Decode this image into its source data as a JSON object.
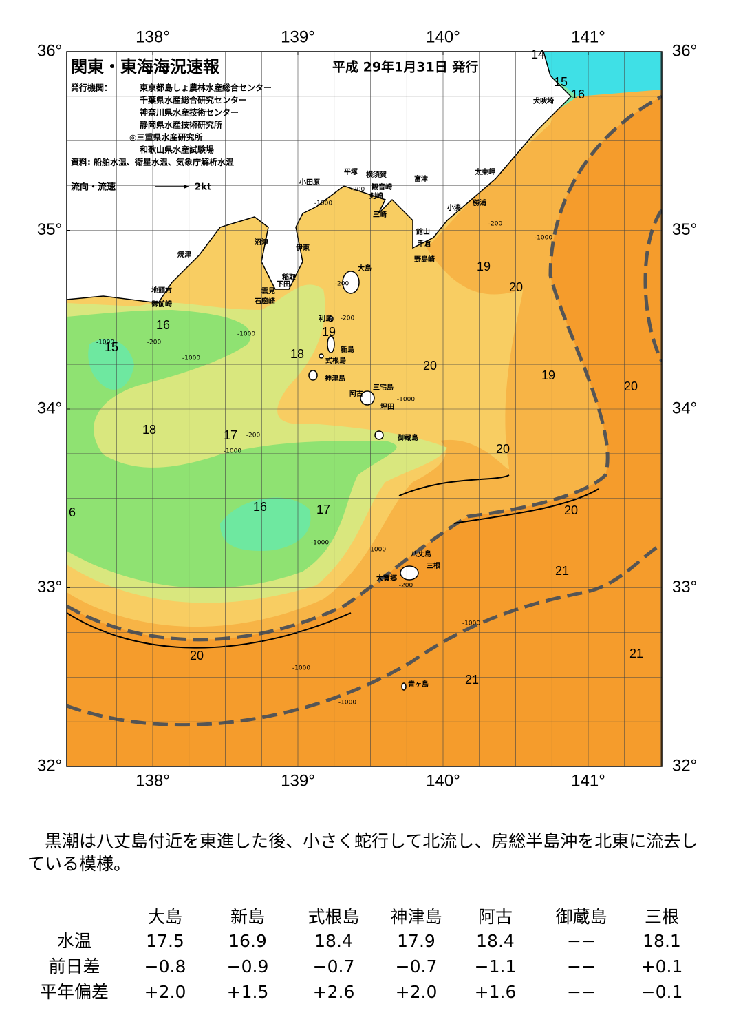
{
  "header": {
    "title": "関東・東海海況速報",
    "date": "平成 29年1月31日 発行",
    "publisher_label": "発行機関：",
    "publishers": [
      "東京都島しょ農林水産総合センター",
      "千葉県水産総合研究センター",
      "神奈川県水産技術センター",
      "静岡県水産技術研究所",
      "◎三重県水産研究所",
      "和歌山県水産試験場"
    ],
    "sources": "資料: 船舶水温、衛星水温、気象庁解析水温",
    "flow_legend": "流向・流速",
    "flow_unit": "2kt"
  },
  "map": {
    "lon_ticks": [
      {
        "value": 138,
        "label": "138°"
      },
      {
        "value": 139,
        "label": "139°"
      },
      {
        "value": 140,
        "label": "140°"
      },
      {
        "value": 141,
        "label": "141°"
      }
    ],
    "lat_ticks": [
      {
        "value": 36,
        "label": "36°"
      },
      {
        "value": 35,
        "label": "35°"
      },
      {
        "value": 34,
        "label": "34°"
      },
      {
        "value": 33,
        "label": "33°"
      },
      {
        "value": 32,
        "label": "32°"
      }
    ],
    "places": [
      "犬吠埼",
      "太東岬",
      "勝浦",
      "小湊",
      "富津",
      "横須賀",
      "観音崎",
      "剣崎",
      "三崎",
      "館山",
      "千倉",
      "野島崎",
      "平塚",
      "小田原",
      "沼津",
      "伊東",
      "稲取",
      "下田",
      "雲見",
      "石廊崎",
      "焼津",
      "地頭方",
      "御前崎",
      "大島",
      "利島",
      "新島",
      "式根島",
      "神津島",
      "三宅島",
      "阿古",
      "坪田",
      "御蔵島",
      "八丈島",
      "三根",
      "大賀郷",
      "青ヶ島"
    ],
    "isotherm_labels": [
      "14",
      "15",
      "16",
      "16",
      "15",
      "18",
      "17",
      "18",
      "19",
      "16",
      "17",
      "19",
      "20",
      "20",
      "19",
      "20",
      "20",
      "20",
      "21",
      "21",
      "21",
      "20",
      "6"
    ],
    "depth_labels": [
      "-200",
      "-1000",
      "-200",
      "-200",
      "-1000",
      "-200",
      "-1000",
      "-1000",
      "-1000",
      "-200",
      "-1000",
      "-1000",
      "-1000",
      "-200",
      "-1000",
      "-1000",
      "-1000",
      "-1000",
      "-200"
    ]
  },
  "summary": "黒潮は八丈島付近を東進した後、小さく蛇行して北流し、房総半島沖を北東に流去している模様。",
  "table": {
    "columns": [
      "大島",
      "新島",
      "式根島",
      "神津島",
      "阿古",
      "御蔵島",
      "三根"
    ],
    "rows": [
      {
        "label": "水温",
        "values": [
          "17.5",
          "16.9",
          "18.4",
          "17.9",
          "18.4",
          "−−",
          "18.1"
        ]
      },
      {
        "label": "前日差",
        "values": [
          "−0.8",
          "−0.9",
          "−0.7",
          "−0.7",
          "−1.1",
          "−−",
          "+0.1"
        ]
      },
      {
        "label": "平年偏差",
        "values": [
          "+2.0",
          "+1.5",
          "+2.6",
          "+2.0",
          "+1.6",
          "−−",
          "−0.1"
        ]
      }
    ]
  }
}
